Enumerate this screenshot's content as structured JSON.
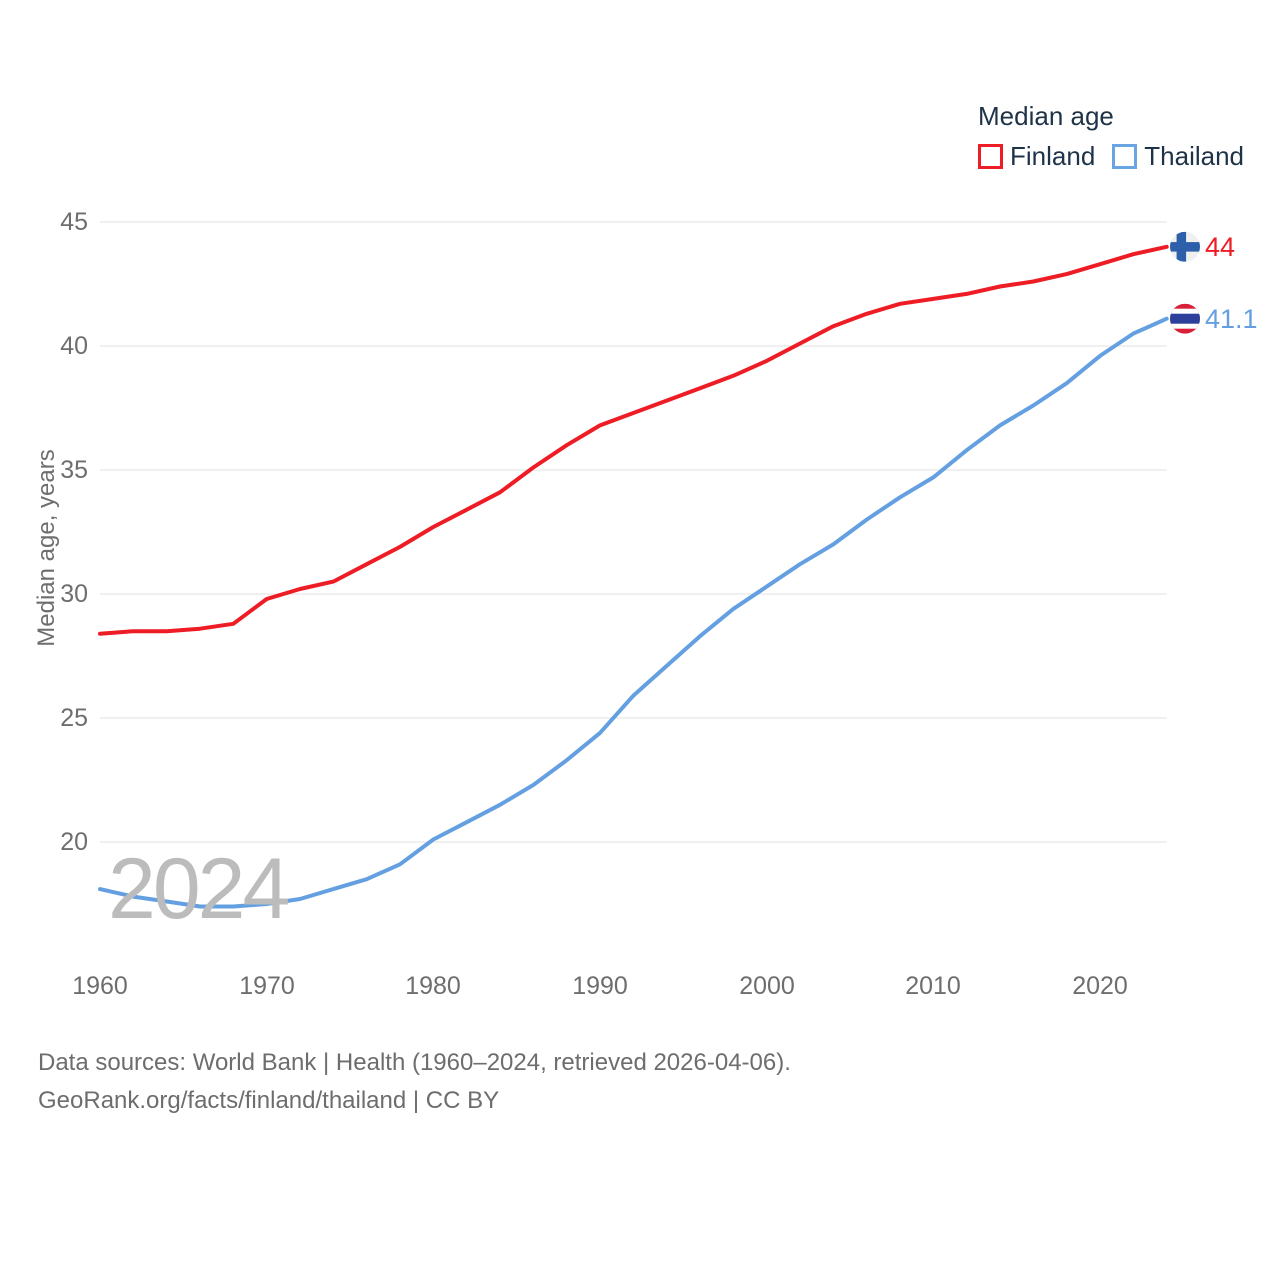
{
  "legend": {
    "title": "Median age",
    "items": [
      {
        "label": "Finland",
        "color": "#ee1c25"
      },
      {
        "label": "Thailand",
        "color": "#64a0e1"
      }
    ]
  },
  "y_axis": {
    "title": "Median age, years",
    "ticks": [
      "45",
      "40",
      "35",
      "30",
      "25",
      "20"
    ]
  },
  "x_axis": {
    "ticks": [
      "1960",
      "1970",
      "1980",
      "1990",
      "2000",
      "2010",
      "2020"
    ]
  },
  "end_labels": {
    "finland": "44",
    "thailand": "41.1"
  },
  "watermark": "2024",
  "footer": {
    "line1": "Data sources: World Bank | Health (1960–2024, retrieved 2026-04-06).",
    "line2": "GeoRank.org/facts/finland/thailand | CC BY"
  },
  "chart_data": {
    "type": "line",
    "title": "Median age",
    "xlabel": "",
    "ylabel": "Median age, years",
    "x": [
      1960,
      1962,
      1964,
      1966,
      1968,
      1970,
      1972,
      1974,
      1976,
      1978,
      1980,
      1982,
      1984,
      1986,
      1988,
      1990,
      1992,
      1994,
      1996,
      1998,
      2000,
      2002,
      2004,
      2006,
      2008,
      2010,
      2012,
      2014,
      2016,
      2018,
      2020,
      2022,
      2024
    ],
    "series": [
      {
        "name": "Finland",
        "color": "#ee1c25",
        "values": [
          28.4,
          28.5,
          28.5,
          28.6,
          28.8,
          29.8,
          30.2,
          30.5,
          31.2,
          31.9,
          32.7,
          33.4,
          34.1,
          35.1,
          36.0,
          36.8,
          37.3,
          37.8,
          38.3,
          38.8,
          39.4,
          40.1,
          40.8,
          41.3,
          41.7,
          41.9,
          42.1,
          42.4,
          42.6,
          42.9,
          43.3,
          43.7,
          44.0
        ]
      },
      {
        "name": "Thailand",
        "color": "#64a0e1",
        "values": [
          18.1,
          17.8,
          17.6,
          17.4,
          17.4,
          17.5,
          17.7,
          18.1,
          18.5,
          19.1,
          20.1,
          20.8,
          21.5,
          22.3,
          23.3,
          24.4,
          25.9,
          27.1,
          28.3,
          29.4,
          30.3,
          31.2,
          32.0,
          33.0,
          33.9,
          34.7,
          35.8,
          36.8,
          37.6,
          38.5,
          39.6,
          40.5,
          41.1
        ]
      }
    ],
    "xlim": [
      1960,
      2024
    ],
    "ylim": [
      17,
      46
    ],
    "ytick_values": [
      20,
      25,
      30,
      35,
      40,
      45
    ],
    "grid": "horizontal",
    "legend_position": "top-right",
    "end_values": {
      "Finland": 44,
      "Thailand": 41.1
    }
  }
}
